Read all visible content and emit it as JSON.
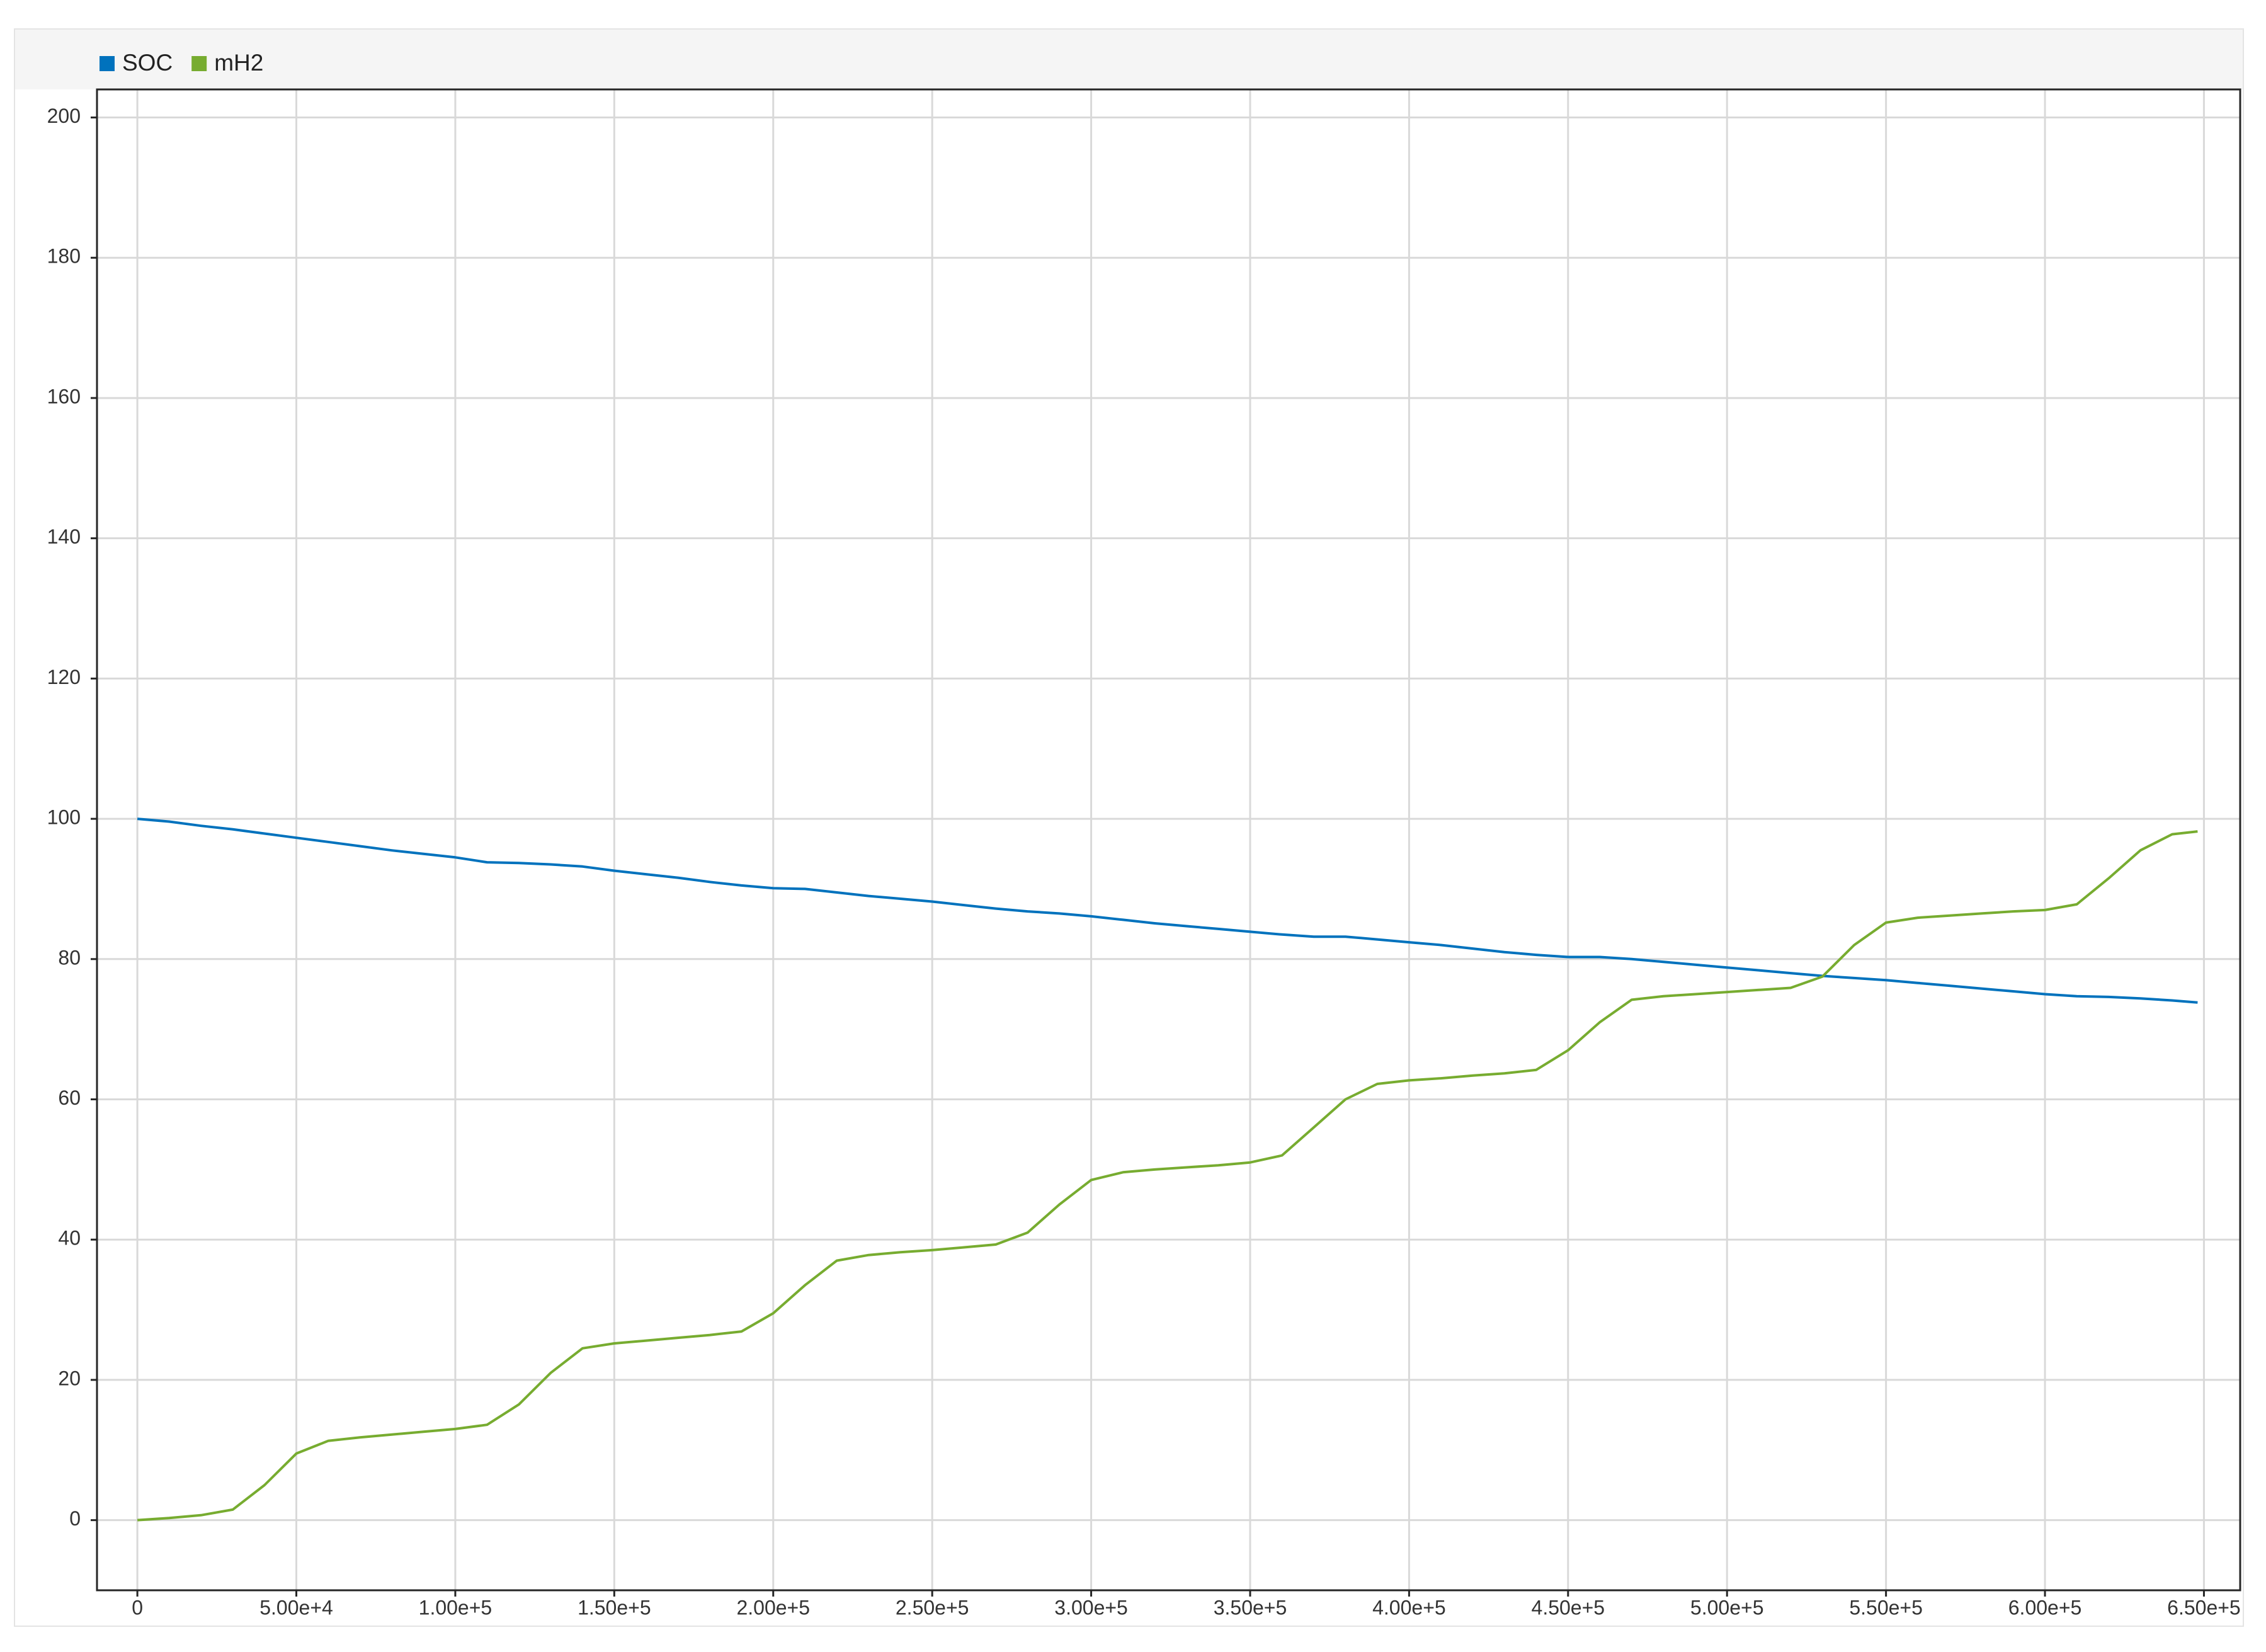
{
  "chart_data": {
    "type": "line",
    "x": [
      0,
      10000,
      20000,
      30000,
      40000,
      50000,
      60000,
      70000,
      80000,
      90000,
      100000,
      110000,
      120000,
      130000,
      140000,
      150000,
      160000,
      170000,
      180000,
      190000,
      200000,
      210000,
      220000,
      230000,
      240000,
      250000,
      260000,
      270000,
      280000,
      290000,
      300000,
      310000,
      320000,
      330000,
      340000,
      350000,
      360000,
      370000,
      380000,
      390000,
      400000,
      410000,
      420000,
      430000,
      440000,
      450000,
      460000,
      470000,
      480000,
      490000,
      500000,
      510000,
      520000,
      530000,
      540000,
      550000,
      560000,
      570000,
      580000,
      590000,
      600000,
      610000,
      620000,
      630000,
      640000,
      648000
    ],
    "series": [
      {
        "name": "SOC",
        "color": "#0072bd",
        "values": [
          100,
          99.6,
          99,
          98.5,
          97.9,
          97.3,
          96.7,
          96.1,
          95.5,
          95,
          94.5,
          93.8,
          93.7,
          93.5,
          93.2,
          92.6,
          92.1,
          91.6,
          91,
          90.5,
          90.1,
          90,
          89.5,
          89,
          88.6,
          88.2,
          87.7,
          87.2,
          86.8,
          86.5,
          86.1,
          85.6,
          85.1,
          84.7,
          84.3,
          83.9,
          83.5,
          83.2,
          83.2,
          82.8,
          82.4,
          82,
          81.5,
          81,
          80.6,
          80.3,
          80.3,
          80,
          79.6,
          79.2,
          78.8,
          78.4,
          78,
          77.6,
          77.3,
          77,
          76.6,
          76.2,
          75.8,
          75.4,
          75,
          74.7,
          74.6,
          74.4,
          74.1,
          73.8
        ]
      },
      {
        "name": "mH2",
        "color": "#77ac30",
        "values": [
          0,
          0.3,
          0.7,
          1.5,
          5,
          9.5,
          11.3,
          11.8,
          12.2,
          12.6,
          13,
          13.6,
          16.5,
          21,
          24.5,
          25.2,
          25.6,
          26,
          26.4,
          26.9,
          29.5,
          33.5,
          37,
          37.8,
          38.2,
          38.5,
          38.9,
          39.3,
          41,
          45,
          48.5,
          49.6,
          50,
          50.3,
          50.6,
          51,
          52,
          56,
          60,
          62.2,
          62.7,
          63,
          63.4,
          63.7,
          64.2,
          67,
          71,
          74.2,
          74.7,
          75,
          75.3,
          75.6,
          75.9,
          77.5,
          82,
          85.2,
          85.9,
          86.2,
          86.5,
          86.8,
          87,
          87.8,
          91.5,
          95.5,
          97.8,
          98.2
        ]
      }
    ],
    "xlim": [
      -12700,
      661400
    ],
    "xticks": [
      0,
      {
        "value": 50000,
        "label": "5.00e+4"
      },
      {
        "value": 100000,
        "label": "1.00e+5"
      },
      {
        "value": 150000,
        "label": "1.50e+5"
      },
      {
        "value": 200000,
        "label": "2.00e+5"
      },
      {
        "value": 250000,
        "label": "2.50e+5"
      },
      {
        "value": 300000,
        "label": "3.00e+5"
      },
      {
        "value": 350000,
        "label": "3.50e+5"
      },
      {
        "value": 400000,
        "label": "4.00e+5"
      },
      {
        "value": 450000,
        "label": "4.50e+5"
      },
      {
        "value": 500000,
        "label": "5.00e+5"
      },
      {
        "value": 550000,
        "label": "5.50e+5"
      },
      {
        "value": 600000,
        "label": "6.00e+5"
      },
      {
        "value": 650000,
        "label": "6.50e+5"
      }
    ],
    "ylim": [
      -10,
      204
    ],
    "yticks": [
      0,
      20,
      40,
      60,
      80,
      100,
      120,
      140,
      160,
      180,
      200
    ],
    "grid": true
  }
}
